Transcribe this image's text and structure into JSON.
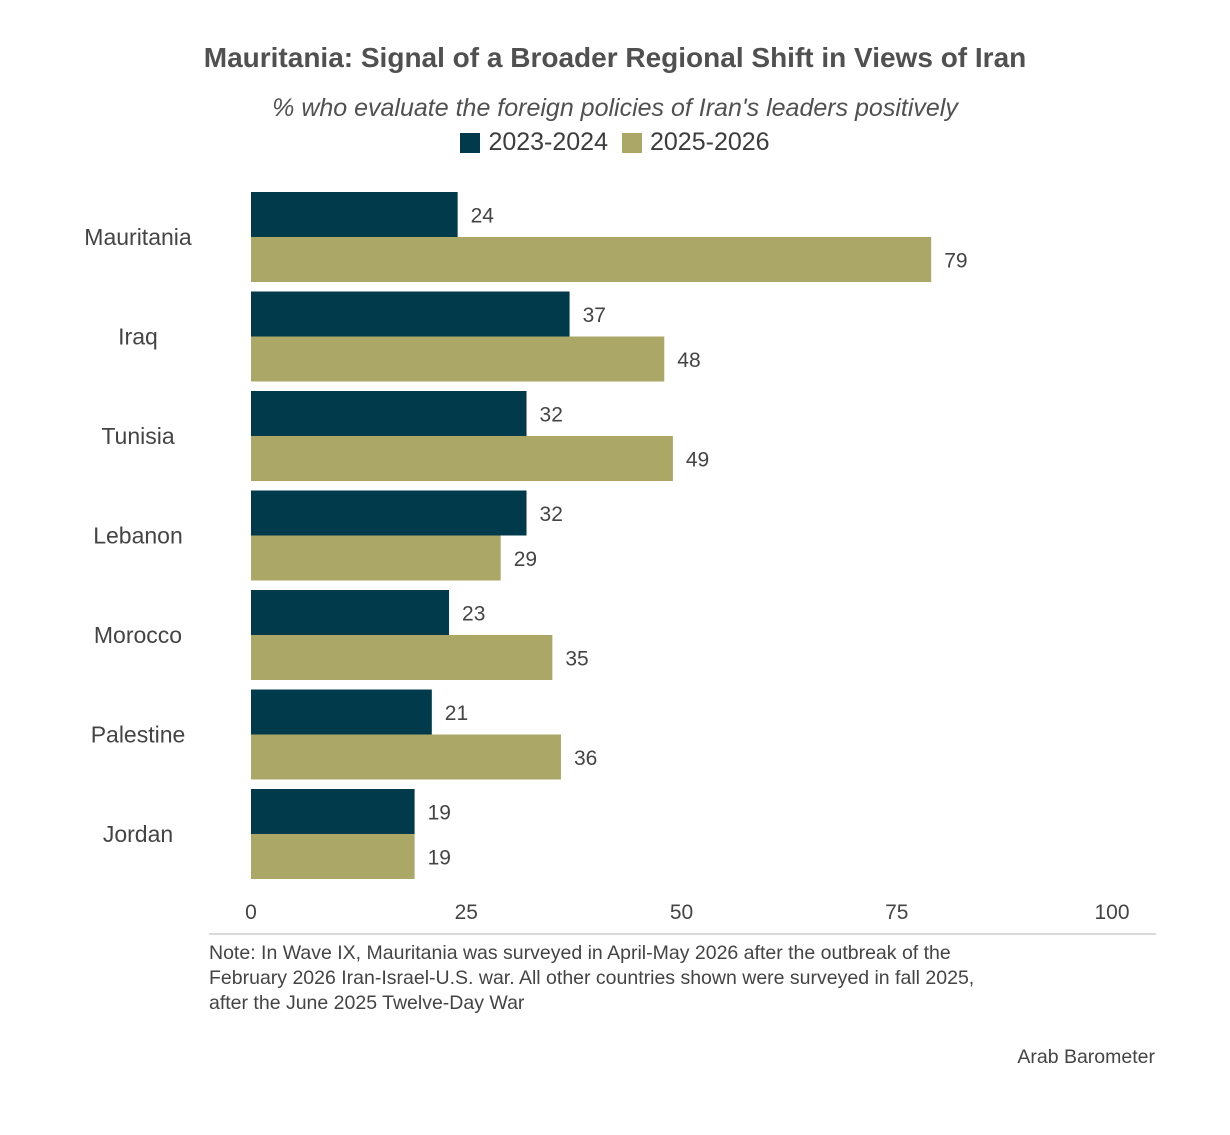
{
  "chart_data": {
    "type": "bar",
    "orientation": "horizontal",
    "title": "Mauritania: Signal of a Broader Regional Shift in Views of Iran",
    "subtitle": "% who evaluate the foreign policies of Iran's leaders positively",
    "categories": [
      "Mauritania",
      "Iraq",
      "Tunisia",
      "Lebanon",
      "Morocco",
      "Palestine",
      "Jordan"
    ],
    "series": [
      {
        "name": "2023-2024",
        "color": "#003a4b",
        "values": [
          24,
          37,
          32,
          32,
          23,
          21,
          19
        ]
      },
      {
        "name": "2025-2026",
        "color": "#aba766",
        "values": [
          79,
          48,
          49,
          29,
          35,
          36,
          19
        ]
      }
    ],
    "xlim": [
      0,
      100
    ],
    "xticks": [
      0,
      25,
      50,
      75,
      100
    ],
    "legend_position": "top-center",
    "grid": false
  },
  "note_lines": [
    "Note: In Wave IX, Mauritania was surveyed in April-May 2026 after the outbreak of the",
    "February 2026 Iran-Israel-U.S. war. All other countries shown were surveyed in fall 2025,",
    "after the June 2025 Twelve-Day War"
  ],
  "source": "Arab Barometer"
}
